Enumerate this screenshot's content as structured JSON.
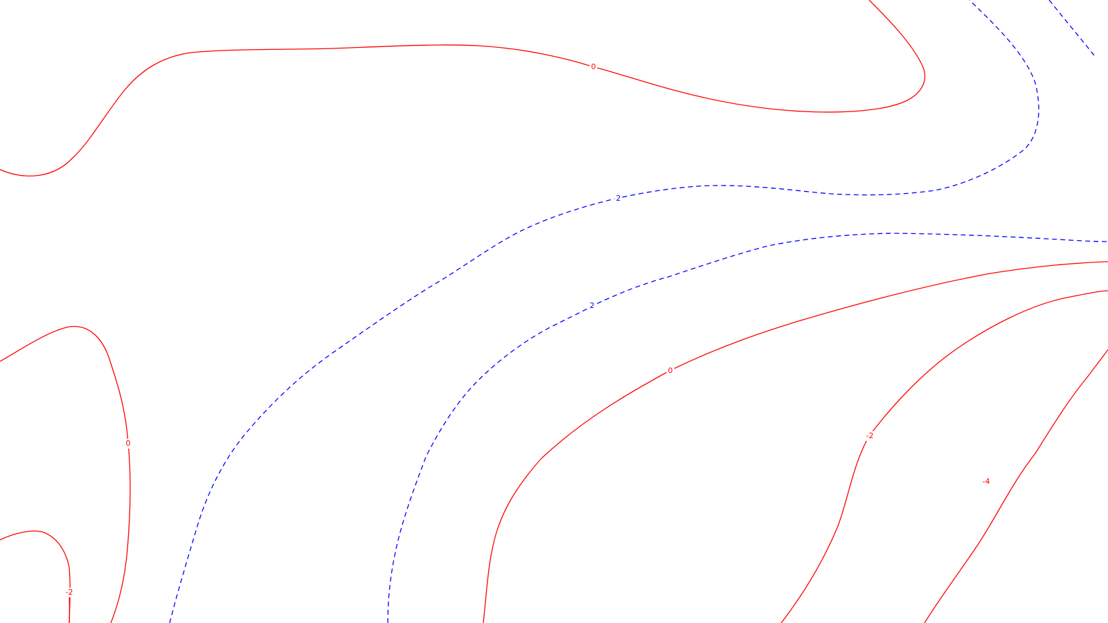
{
  "chart_data": {
    "type": "contour",
    "title": "",
    "xlabel": "",
    "ylabel": "",
    "grid": false,
    "legend": "none",
    "colors": {
      "positive": "#0000ff",
      "zero_and_negative": "#ff0000",
      "background": "#ffffff"
    },
    "positive_style": "dashed",
    "negative_style": "solid",
    "levels": [
      -4,
      -2,
      0,
      2
    ],
    "contours": [
      {
        "level": 0,
        "label": "0",
        "style": "solid"
      },
      {
        "level": 0,
        "label": "0",
        "style": "solid"
      },
      {
        "level": 0,
        "label": "0",
        "style": "solid"
      },
      {
        "level": 0,
        "label": "",
        "style": "solid"
      },
      {
        "level": -2,
        "label": "-2",
        "style": "solid"
      },
      {
        "level": -2,
        "label": "-2",
        "style": "solid"
      },
      {
        "level": -4,
        "label": "-4",
        "style": "solid"
      },
      {
        "level": 2,
        "label": "2",
        "style": "dashed"
      },
      {
        "level": 2,
        "label": "2",
        "style": "dashed"
      },
      {
        "level": 2,
        "label": "",
        "style": "dashed"
      },
      {
        "level": 2,
        "label": "",
        "style": "dashed"
      }
    ]
  }
}
